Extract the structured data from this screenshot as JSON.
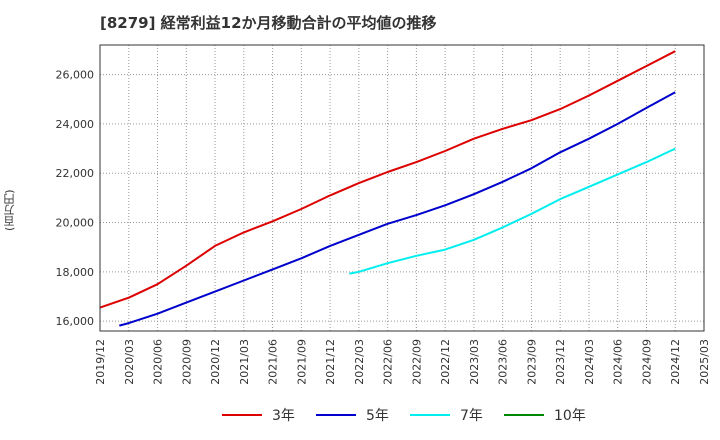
{
  "header": {
    "title": "[8279]  経常利益12か月移動合計の平均値の推移"
  },
  "chart_data": {
    "type": "line",
    "ylabel": "(百万円)",
    "xlabel": "",
    "ylim": [
      15600,
      27200
    ],
    "yticks": [
      16000,
      18000,
      20000,
      22000,
      24000,
      26000
    ],
    "ytick_labels": [
      "16,000",
      "18,000",
      "20,000",
      "22,000",
      "24,000",
      "26,000"
    ],
    "x_categories": [
      "2019/12",
      "2020/03",
      "2020/06",
      "2020/09",
      "2020/12",
      "2021/03",
      "2021/06",
      "2021/09",
      "2021/12",
      "2022/03",
      "2022/06",
      "2022/09",
      "2022/12",
      "2023/03",
      "2023/06",
      "2023/09",
      "2023/12",
      "2024/03",
      "2024/06",
      "2024/09",
      "2024/12",
      "2025/03"
    ],
    "grid": true,
    "legend_position": "bottom",
    "series": [
      {
        "name": "3年",
        "color": "#dd0000",
        "points": [
          [
            0,
            16550
          ],
          [
            1,
            16950
          ],
          [
            2,
            17500
          ],
          [
            3,
            18250
          ],
          [
            4,
            19050
          ],
          [
            5,
            19600
          ],
          [
            6,
            20050
          ],
          [
            7,
            20550
          ],
          [
            8,
            21100
          ],
          [
            9,
            21600
          ],
          [
            10,
            22050
          ],
          [
            11,
            22450
          ],
          [
            12,
            22900
          ],
          [
            13,
            23400
          ],
          [
            14,
            23800
          ],
          [
            15,
            24150
          ],
          [
            16,
            24600
          ],
          [
            17,
            25150
          ],
          [
            18,
            25750
          ],
          [
            19,
            26350
          ],
          [
            20,
            26950
          ]
        ]
      },
      {
        "name": "5年",
        "color": "#0000cc",
        "points": [
          [
            0.67,
            15820
          ],
          [
            1,
            15920
          ],
          [
            2,
            16300
          ],
          [
            3,
            16750
          ],
          [
            4,
            17200
          ],
          [
            5,
            17650
          ],
          [
            6,
            18100
          ],
          [
            7,
            18550
          ],
          [
            8,
            19050
          ],
          [
            9,
            19500
          ],
          [
            10,
            19950
          ],
          [
            11,
            20300
          ],
          [
            12,
            20700
          ],
          [
            13,
            21150
          ],
          [
            14,
            21650
          ],
          [
            15,
            22200
          ],
          [
            16,
            22850
          ],
          [
            17,
            23400
          ],
          [
            18,
            24000
          ],
          [
            19,
            24650
          ],
          [
            20,
            25280
          ]
        ]
      },
      {
        "name": "7年",
        "color": "#00eeee",
        "points": [
          [
            8.67,
            17930
          ],
          [
            9,
            18000
          ],
          [
            10,
            18350
          ],
          [
            11,
            18650
          ],
          [
            12,
            18900
          ],
          [
            13,
            19300
          ],
          [
            14,
            19800
          ],
          [
            15,
            20350
          ],
          [
            16,
            20950
          ],
          [
            17,
            21450
          ],
          [
            18,
            21950
          ],
          [
            19,
            22450
          ],
          [
            20,
            23000
          ]
        ]
      },
      {
        "name": "10年",
        "color": "#008800",
        "points": []
      }
    ]
  }
}
